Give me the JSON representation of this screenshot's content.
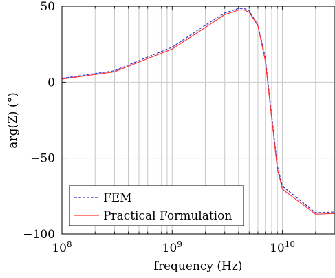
{
  "chart_data": {
    "type": "line",
    "xscale": "log",
    "xlim": [
      100000000,
      30000000000
    ],
    "ylim": [
      -100,
      50
    ],
    "xlabel": "frequency (Hz)",
    "ylabel": "arg(Z) (°)",
    "x_ticks": [
      {
        "value": 100000000,
        "base": "10",
        "exp": "8"
      },
      {
        "value": 1000000000,
        "base": "10",
        "exp": "9"
      },
      {
        "value": 10000000000,
        "base": "10",
        "exp": "10"
      }
    ],
    "y_ticks": [
      {
        "value": 50,
        "label": "50"
      },
      {
        "value": 0,
        "label": "0"
      },
      {
        "value": -50,
        "label": "−50"
      },
      {
        "value": -100,
        "label": "−100"
      }
    ],
    "grid": true,
    "legend_position": "bottom-left",
    "series": [
      {
        "name": "FEM",
        "color": "#3333cc",
        "style": "dashed",
        "points": [
          [
            100000000,
            2.5
          ],
          [
            300000000,
            7.5
          ],
          [
            600000000,
            16.5
          ],
          [
            1000000000,
            23
          ],
          [
            2000000000,
            37.5
          ],
          [
            3000000000,
            45.5
          ],
          [
            4000000000,
            48.5
          ],
          [
            4500000000,
            48.5
          ],
          [
            5000000000,
            47
          ],
          [
            6000000000,
            37.5
          ],
          [
            7000000000,
            16
          ],
          [
            8000000000,
            -22
          ],
          [
            9000000000,
            -55
          ],
          [
            10000000000,
            -68.5
          ],
          [
            20000000000,
            -86
          ],
          [
            30000000000,
            -85.5
          ]
        ]
      },
      {
        "name": "Practical Formulation",
        "color": "#ff3333",
        "style": "solid",
        "points": [
          [
            100000000,
            2.0
          ],
          [
            300000000,
            6.8
          ],
          [
            600000000,
            15.5
          ],
          [
            1000000000,
            21.8
          ],
          [
            2000000000,
            36
          ],
          [
            3000000000,
            44.5
          ],
          [
            4000000000,
            47.5
          ],
          [
            4500000000,
            47.5
          ],
          [
            5000000000,
            46
          ],
          [
            6000000000,
            37
          ],
          [
            7000000000,
            14
          ],
          [
            8000000000,
            -24
          ],
          [
            9000000000,
            -57
          ],
          [
            10000000000,
            -70.5
          ],
          [
            20000000000,
            -87
          ],
          [
            30000000000,
            -86.5
          ]
        ]
      }
    ]
  }
}
